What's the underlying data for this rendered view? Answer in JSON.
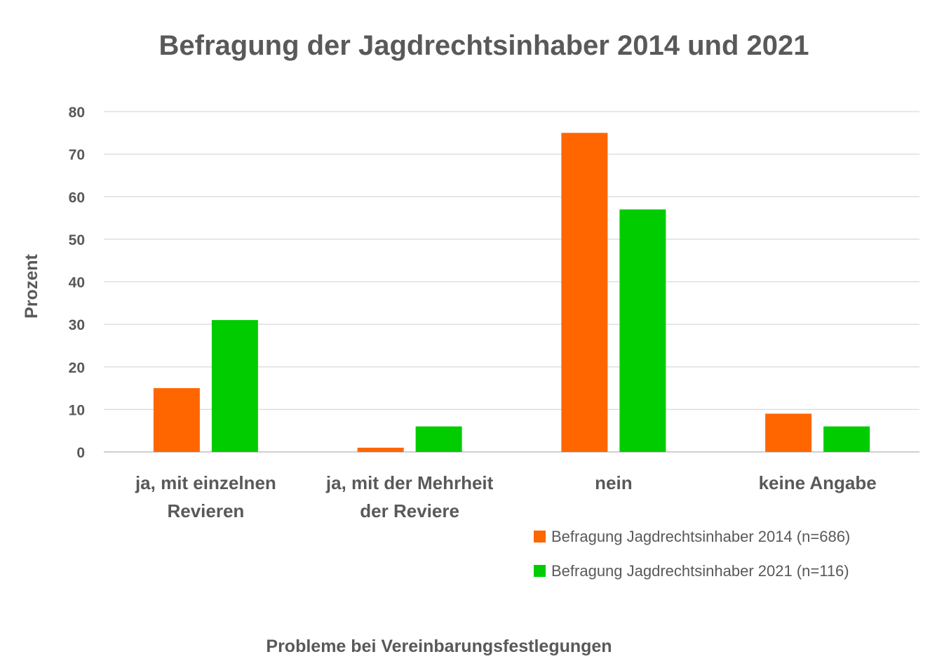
{
  "chart_data": {
    "type": "bar",
    "title": "Befragung der Jagdrechtsinhaber 2014 und 2021",
    "xlabel": "Probleme bei Vereinbarungsfestlegungen",
    "ylabel": "Prozent",
    "ylim": [
      0,
      80
    ],
    "yticks": [
      0,
      10,
      20,
      30,
      40,
      50,
      60,
      70,
      80
    ],
    "grid": true,
    "legend_position": "bottom-right",
    "categories": [
      [
        "ja, mit einzelnen",
        "Revieren"
      ],
      [
        "ja, mit der Mehrheit",
        "der Reviere"
      ],
      [
        "nein"
      ],
      [
        "keine Angabe"
      ]
    ],
    "series": [
      {
        "name": "Befragung Jagdrechtsinhaber 2014 (n=686)",
        "color": "#ff6600",
        "values": [
          15,
          1,
          75,
          9
        ]
      },
      {
        "name": "Befragung Jagdrechtsinhaber 2021 (n=116)",
        "color": "#00cc00",
        "values": [
          31,
          6,
          57,
          6
        ]
      }
    ]
  }
}
